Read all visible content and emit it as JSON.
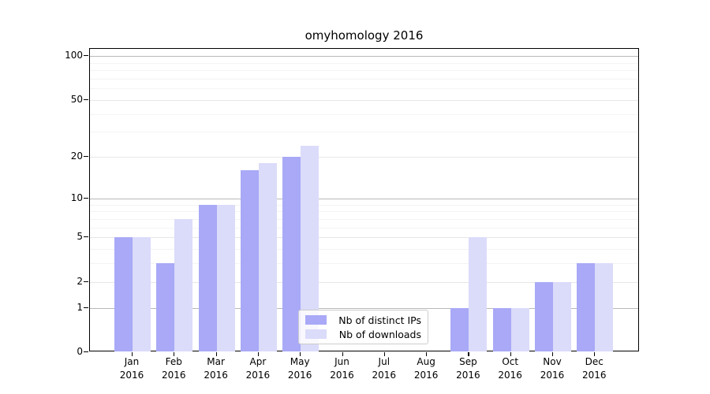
{
  "figure": {
    "background": "#ffffff"
  },
  "chart_data": {
    "type": "bar",
    "title": "omyhomology 2016",
    "categories": [
      "Jan",
      "Feb",
      "Mar",
      "Apr",
      "May",
      "Jun",
      "Jul",
      "Aug",
      "Sep",
      "Oct",
      "Nov",
      "Dec"
    ],
    "x_sublabel": "2016",
    "series": [
      {
        "name": "Nb of distinct IPs",
        "color": "#a9a9f7",
        "values": [
          5,
          3,
          9,
          16,
          20,
          0,
          0,
          0,
          1,
          1,
          2,
          3
        ]
      },
      {
        "name": "Nb of downloads",
        "color": "#dbdbfa",
        "values": [
          5,
          7,
          9,
          18,
          24,
          0,
          0,
          0,
          5,
          1,
          2,
          3
        ]
      }
    ],
    "scale": "log1p",
    "ylim": [
      0,
      112
    ],
    "y_ticks": [
      0,
      1,
      2,
      5,
      10,
      20,
      50,
      100
    ],
    "y_minor_ticks": [
      3,
      4,
      6,
      7,
      8,
      9,
      30,
      40,
      60,
      70,
      80,
      90
    ],
    "grid": "on",
    "grid_major_color": "#b9b9b9",
    "grid_mid_color": "#e7e7e7",
    "grid_minor_color": "#f4f4f4",
    "legend_position": "lower center",
    "xlabel": "",
    "ylabel": ""
  }
}
